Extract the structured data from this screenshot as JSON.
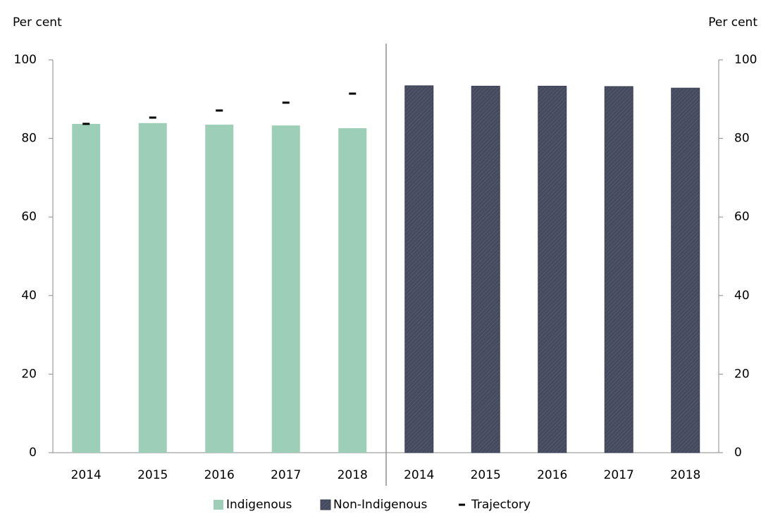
{
  "chart_data": {
    "type": "bar",
    "y_label": "Per cent",
    "y2_label": "Per cent",
    "categories": [
      "2014",
      "2015",
      "2016",
      "2017",
      "2018",
      "2014",
      "2015",
      "2016",
      "2017",
      "2018"
    ],
    "series": [
      {
        "name": "Indigenous",
        "type": "bar",
        "color": "#9dcfb8",
        "values": [
          83.7,
          83.9,
          83.5,
          83.3,
          82.6,
          null,
          null,
          null,
          null,
          null
        ]
      },
      {
        "name": "Non-Indigenous",
        "type": "bar",
        "color": "#454a5e",
        "values": [
          null,
          null,
          null,
          null,
          null,
          93.4,
          93.3,
          93.3,
          93.2,
          92.8
        ]
      },
      {
        "name": "Trajectory",
        "type": "dash",
        "color": "#000000",
        "values": [
          83.7,
          85.3,
          87.1,
          89.1,
          91.4,
          null,
          null,
          null,
          null,
          null
        ]
      }
    ],
    "ylim": [
      0,
      100
    ],
    "yticks": [
      0,
      20,
      40,
      60,
      80,
      100
    ],
    "y2lim": [
      0,
      100
    ],
    "y2ticks": [
      0,
      20,
      40,
      60,
      80,
      100
    ]
  }
}
